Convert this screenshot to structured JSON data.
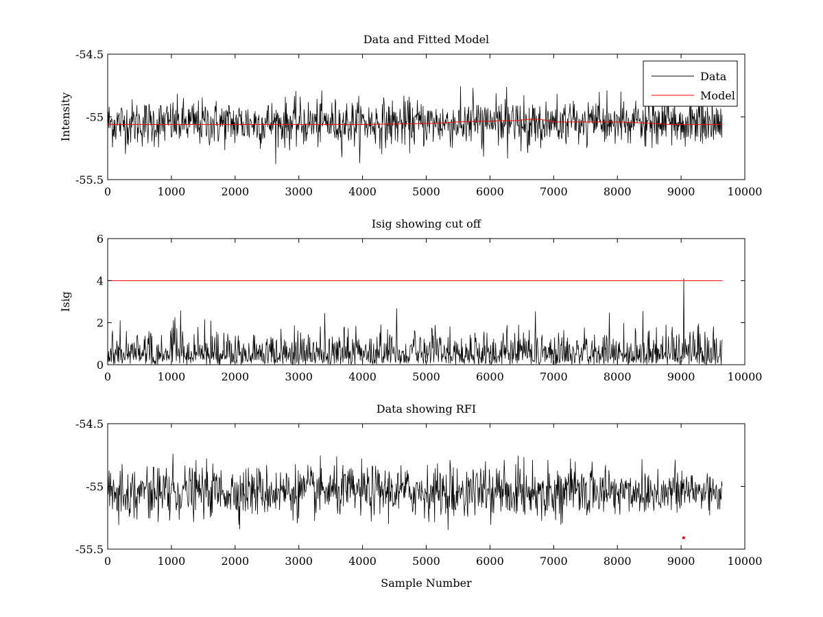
{
  "chart_data": [
    {
      "type": "line",
      "title": "Data and Fitted Model",
      "xlabel": "",
      "ylabel": "Intensity",
      "xlim": [
        0,
        10000
      ],
      "ylim": [
        -55.5,
        -54.5
      ],
      "xticks": [
        0,
        1000,
        2000,
        3000,
        4000,
        5000,
        6000,
        7000,
        8000,
        9000,
        10000
      ],
      "xtick_labels": [
        "0",
        "1000",
        "2000",
        "3000",
        "4000",
        "5000",
        "6000",
        "7000",
        "8000",
        "9000",
        "10000"
      ],
      "yticks": [
        -54.5,
        -55,
        -55.5
      ],
      "ytick_labels": [
        "-54.5",
        "-55",
        "-55.5"
      ],
      "grid": false,
      "legend": {
        "placement": "top-right",
        "entries": [
          "Data",
          "Model"
        ]
      },
      "series": [
        {
          "name": "Data",
          "color": "#000000",
          "kind": "noise",
          "n_samples": 9650,
          "center": -55.05,
          "typical_min": -55.2,
          "typical_max": -54.9,
          "extreme_min": -55.4,
          "extreme_max": -54.75
        },
        {
          "name": "Model",
          "color": "#ff0000",
          "x": [
            0,
            1000,
            2000,
            3000,
            4000,
            4800,
            5200,
            5500,
            5800,
            6000,
            6200,
            6400,
            6600,
            6800,
            7000,
            7500,
            8000,
            8500,
            8800,
            9000,
            9200,
            9650
          ],
          "y": [
            -55.06,
            -55.06,
            -55.06,
            -55.06,
            -55.06,
            -55.055,
            -55.05,
            -55.04,
            -55.035,
            -55.035,
            -55.03,
            -55.03,
            -55.02,
            -55.02,
            -55.04,
            -55.04,
            -55.04,
            -55.05,
            -55.06,
            -55.06,
            -55.06,
            -55.06
          ]
        }
      ]
    },
    {
      "type": "line",
      "title": "Isig showing cut off",
      "xlabel": "",
      "ylabel": "Isig",
      "xlim": [
        0,
        10000
      ],
      "ylim": [
        0,
        6
      ],
      "xticks": [
        0,
        1000,
        2000,
        3000,
        4000,
        5000,
        6000,
        7000,
        8000,
        9000,
        10000
      ],
      "xtick_labels": [
        "0",
        "1000",
        "2000",
        "3000",
        "4000",
        "5000",
        "6000",
        "7000",
        "8000",
        "9000",
        "10000"
      ],
      "yticks": [
        0,
        2,
        4,
        6
      ],
      "ytick_labels": [
        "0",
        "2",
        "4",
        "6"
      ],
      "grid": false,
      "series": [
        {
          "color": "#000000",
          "kind": "abs-noise",
          "n_samples": 9650,
          "typical_max": 1.6,
          "extreme_max": 3.8,
          "spike_x": 9040,
          "spike_y": 4.1
        },
        {
          "color": "#ff0000",
          "x": [
            0,
            9650
          ],
          "y": [
            4,
            4
          ]
        }
      ]
    },
    {
      "type": "line",
      "title": "Data showing RFI",
      "xlabel": "Sample Number",
      "ylabel": "",
      "xlim": [
        0,
        10000
      ],
      "ylim": [
        -55.5,
        -54.5
      ],
      "xticks": [
        0,
        1000,
        2000,
        3000,
        4000,
        5000,
        6000,
        7000,
        8000,
        9000,
        10000
      ],
      "xtick_labels": [
        "0",
        "1000",
        "2000",
        "3000",
        "4000",
        "5000",
        "6000",
        "7000",
        "8000",
        "9000",
        "10000"
      ],
      "yticks": [
        -54.5,
        -55,
        -55.5
      ],
      "ytick_labels": [
        "-54.5",
        "-55",
        "-55.5"
      ],
      "grid": false,
      "series": [
        {
          "color": "#000000",
          "kind": "noise",
          "n_samples": 9650,
          "center": -55.04,
          "typical_min": -55.2,
          "typical_max": -54.88,
          "extreme_min": -55.35,
          "extreme_max": -54.72
        },
        {
          "color": "#ff0000",
          "marker": "point",
          "x": [
            9040
          ],
          "y": [
            -55.41
          ]
        }
      ]
    }
  ]
}
